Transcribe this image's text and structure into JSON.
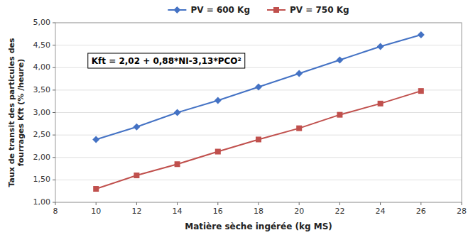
{
  "chart_data": {
    "type": "line",
    "x": [
      10,
      12,
      14,
      16,
      18,
      20,
      22,
      24,
      26
    ],
    "series": [
      {
        "name": "PV = 600 Kg",
        "color": "#4472C4",
        "marker": "diamond",
        "values": [
          2.4,
          2.68,
          3.0,
          3.27,
          3.57,
          3.87,
          4.17,
          4.47,
          4.73
        ]
      },
      {
        "name": "PV = 750 Kg",
        "color": "#C0504D",
        "marker": "square",
        "values": [
          1.3,
          1.6,
          1.85,
          2.13,
          2.4,
          2.65,
          2.95,
          3.2,
          3.48
        ]
      }
    ],
    "xlabel": "Matière sèche ingérée (kg MS)",
    "ylabel": "Taux de transit des particules des\nfourrages Kft (% /heure)",
    "xlim": [
      8,
      28
    ],
    "ylim": [
      1.0,
      5.0
    ],
    "xticks": [
      8,
      10,
      12,
      14,
      16,
      18,
      20,
      22,
      24,
      26,
      28
    ],
    "yticks": [
      {
        "value": 1.0,
        "label": "1,00"
      },
      {
        "value": 1.5,
        "label": "1,50"
      },
      {
        "value": 2.0,
        "label": "2,00"
      },
      {
        "value": 2.5,
        "label": "2,50"
      },
      {
        "value": 3.0,
        "label": "3,00"
      },
      {
        "value": 3.5,
        "label": "3,50"
      },
      {
        "value": 4.0,
        "label": "4,00"
      },
      {
        "value": 4.5,
        "label": "4,50"
      },
      {
        "value": 5.0,
        "label": "5,00"
      }
    ],
    "annotation": "Kft = 2,02 + 0,88*NI-3,13*PCO²",
    "grid": true,
    "legend": "top"
  }
}
